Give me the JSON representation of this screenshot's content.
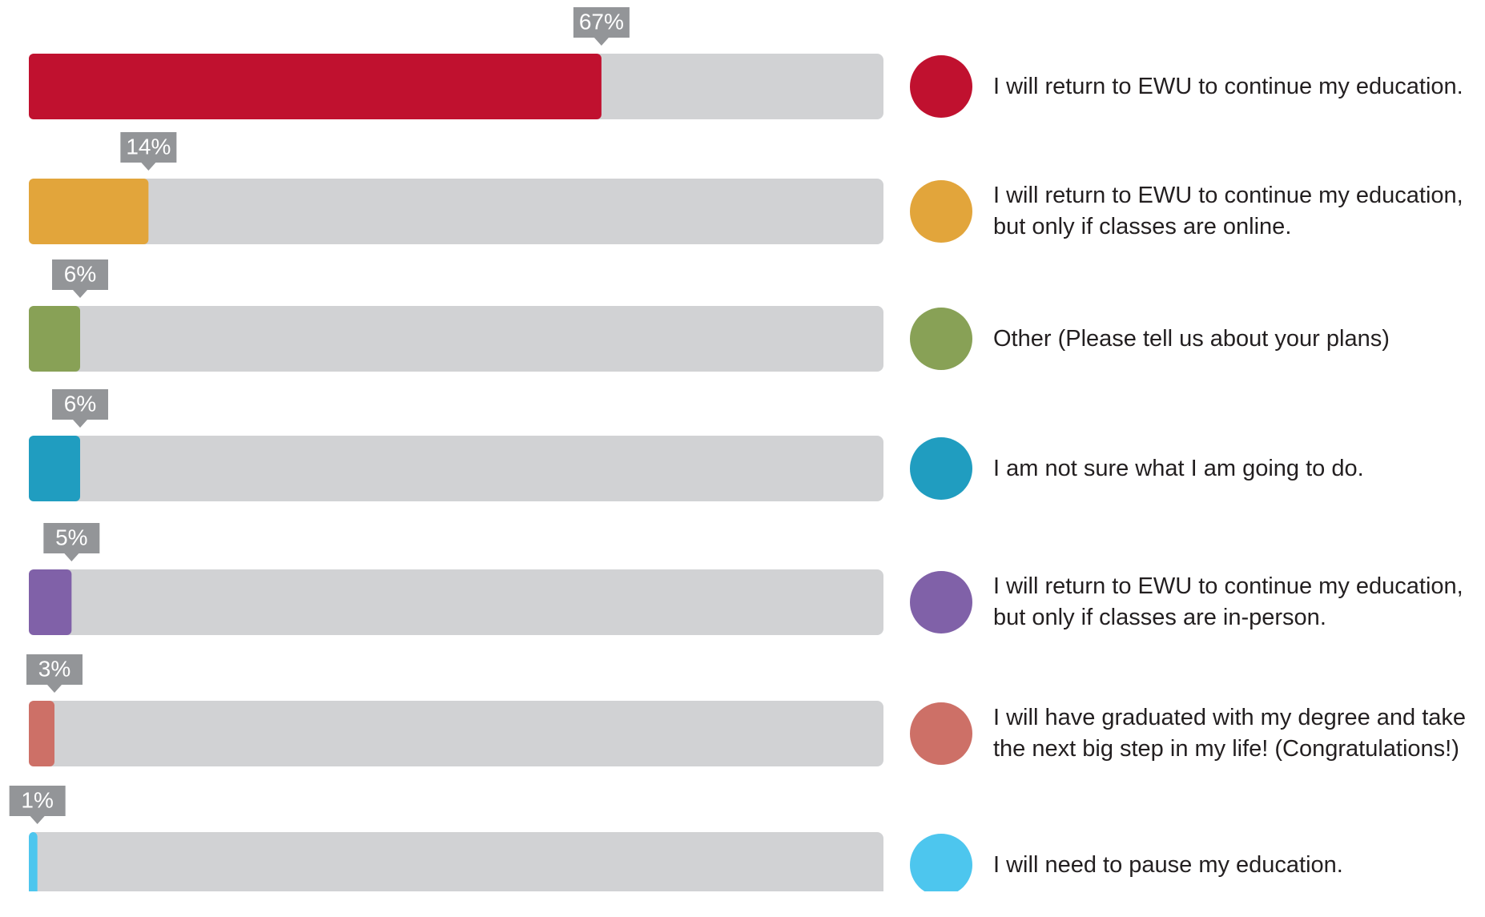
{
  "chart_data": {
    "type": "bar",
    "orientation": "horizontal",
    "categories": [
      "I will return to EWU to continue my education.",
      "I will return to EWU to continue my education, but only if classes are online.",
      "Other (Please tell us about your plans)",
      "I am not sure what I am going to do.",
      "I will return to EWU to continue my education, but only if classes are in-person.",
      "I will have graduated with my degree and take the next big step in my life! (Congratulations!)",
      "I will need to pause my education."
    ],
    "values": [
      67,
      14,
      6,
      6,
      5,
      3,
      1
    ],
    "value_labels": [
      "67%",
      "14%",
      "6%",
      "6%",
      "5%",
      "3%",
      "1%"
    ],
    "colors": [
      "#c0112f",
      "#e2a53b",
      "#88a156",
      "#209dc0",
      "#8061a8",
      "#cd7067",
      "#4dc6ee"
    ],
    "track_color": "#d1d2d4",
    "xlim": [
      0,
      100
    ]
  }
}
